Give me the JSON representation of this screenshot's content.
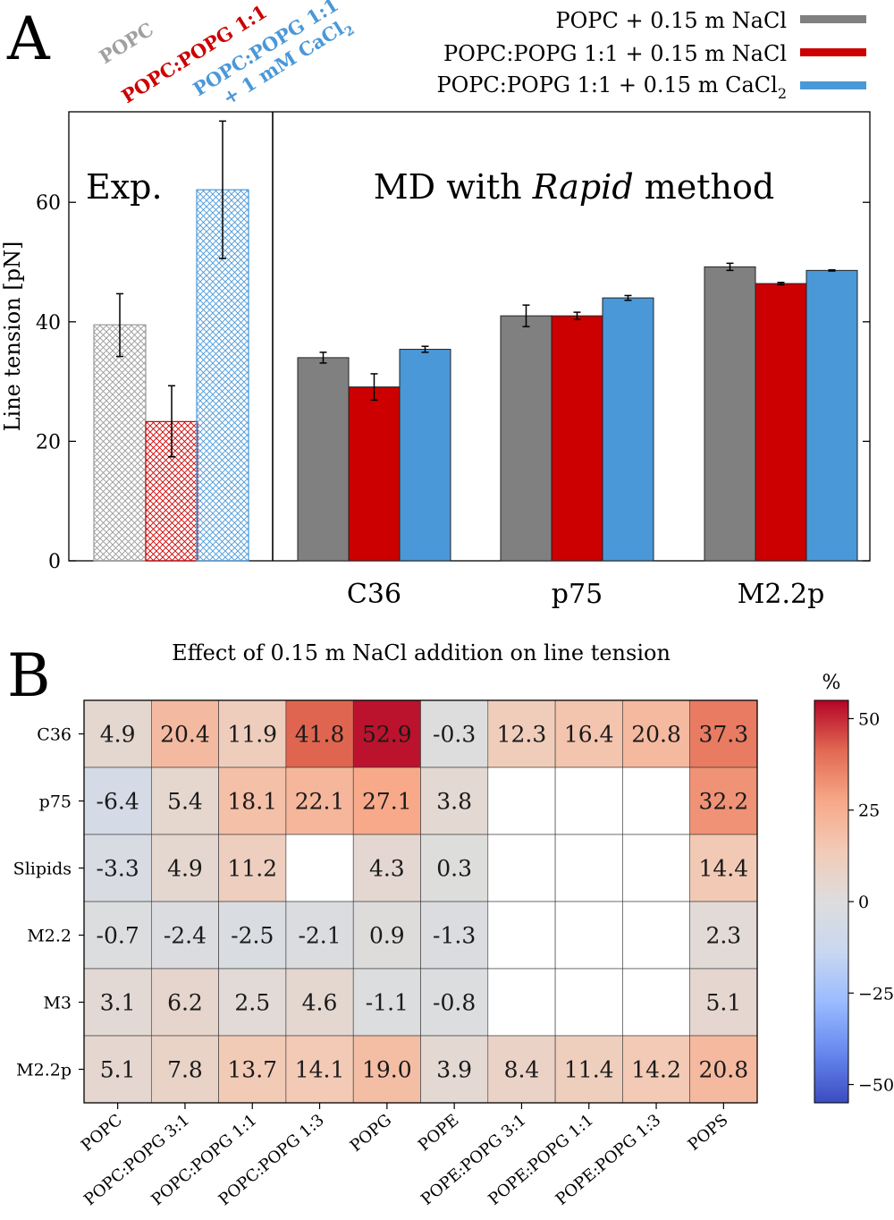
{
  "chart_data": [
    {
      "panel_label": "A",
      "type": "bar",
      "ylabel": "Line tension [pN]",
      "ylim": [
        0,
        75
      ],
      "yticks": [
        0,
        20,
        40,
        60
      ],
      "grid": false,
      "legend_position": "top-right",
      "legend": [
        {
          "label": "POPC + 0.15 m NaCl",
          "color": "#808080"
        },
        {
          "label": "POPC:POPG 1:1 + 0.15 m NaCl",
          "color": "#cc0000"
        },
        {
          "label_main": "POPC:POPG 1:1 + 0.15 m CaCl",
          "label_sub": "2",
          "color": "#4a98d8"
        }
      ],
      "experiment": {
        "label": "Exp.",
        "bars": [
          {
            "name": "POPC",
            "value": 39.5,
            "err_low": 34.2,
            "err_high": 44.7,
            "color": "#999999"
          },
          {
            "name": "POPC:POPG 1:1",
            "value": 23.3,
            "err_low": 17.4,
            "err_high": 29.3,
            "color": "#cc0000"
          },
          {
            "name_line1": "POPC:POPG 1:1",
            "name_line2_main": "+ 1 mM CaCl",
            "name_line2_sub": "2",
            "value": 62.1,
            "err_low": 50.6,
            "err_high": 73.6,
            "color": "#4a98d8"
          }
        ]
      },
      "md": {
        "label_pre": "MD with ",
        "label_italic": "Rapid",
        "label_post": " method",
        "categories": [
          "C36",
          "p75",
          "M2.2p"
        ],
        "series": [
          {
            "color": "#808080",
            "values": [
              34.0,
              41.0,
              49.2
            ],
            "errors": [
              0.9,
              1.8,
              0.6
            ]
          },
          {
            "color": "#cc0000",
            "values": [
              29.1,
              41.0,
              46.4
            ],
            "errors": [
              2.2,
              0.6,
              0.2
            ]
          },
          {
            "color": "#4a98d8",
            "values": [
              35.4,
              44.0,
              48.6
            ],
            "errors": [
              0.5,
              0.4,
              0.1
            ]
          }
        ]
      }
    },
    {
      "panel_label": "B",
      "type": "heatmap",
      "title": "Effect of 0.15 m NaCl addition on line tension",
      "rows": [
        "C36",
        "p75",
        "Slipids",
        "M2.2",
        "M3",
        "M2.2p"
      ],
      "columns": [
        "POPC",
        "POPC:POPG 3:1",
        "POPC:POPG 1:1",
        "POPC:POPG 1:3",
        "POPG",
        "POPE",
        "POPE:POPG 3:1",
        "POPE:POPG 1:1",
        "POPE:POPG 1:3",
        "POPS"
      ],
      "values": [
        [
          "4.9",
          "20.4",
          "11.9",
          "41.8",
          "52.9",
          "-0.3",
          "12.3",
          "16.4",
          "20.8",
          "37.3"
        ],
        [
          "-6.4",
          "5.4",
          "18.1",
          "22.1",
          "27.1",
          "3.8",
          null,
          null,
          null,
          "32.2"
        ],
        [
          "-3.3",
          "4.9",
          "11.2",
          null,
          "4.3",
          "0.3",
          null,
          null,
          null,
          "14.4"
        ],
        [
          "-0.7",
          "-2.4",
          "-2.5",
          "-2.1",
          "0.9",
          "-1.3",
          null,
          null,
          null,
          "2.3"
        ],
        [
          "3.1",
          "6.2",
          "2.5",
          "4.6",
          "-1.1",
          "-0.8",
          null,
          null,
          null,
          "5.1"
        ],
        [
          "5.1",
          "7.8",
          "13.7",
          "14.1",
          "19.0",
          "3.9",
          "8.4",
          "11.4",
          "14.2",
          "20.8"
        ]
      ],
      "colorbar": {
        "label": "%",
        "min": -55,
        "max": 55,
        "ticks": [
          50,
          25,
          0,
          -25,
          -50
        ],
        "tick_labels": [
          "50",
          "25",
          "0",
          "−25",
          "−50"
        ],
        "colormap": "coolwarm"
      }
    }
  ]
}
